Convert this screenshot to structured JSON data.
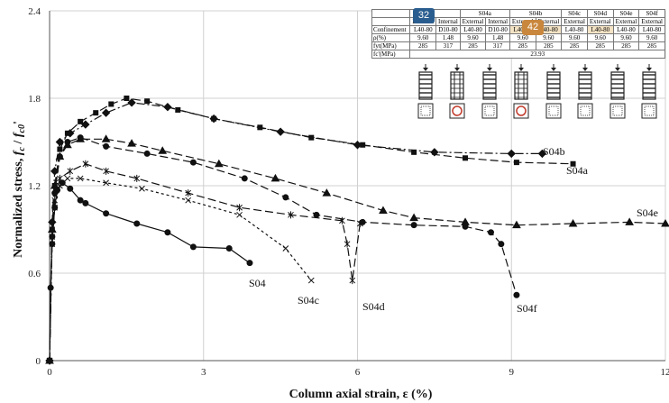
{
  "chart_data": {
    "type": "line",
    "xlabel": "Column axial strain, ε (%)",
    "ylabel": "Normalized stress, fc / fc0'",
    "xlim": [
      0,
      12
    ],
    "ylim": [
      0,
      2.4
    ],
    "x_ticks": [
      "0",
      "3",
      "6",
      "9",
      "12"
    ],
    "y_ticks": [
      "0",
      "0.6",
      "1.2",
      "1.8",
      "2.4"
    ],
    "grid": true,
    "series": [
      {
        "name": "S04",
        "marker": "circle",
        "dash": "solid",
        "x": [
          0,
          0.02,
          0.05,
          0.1,
          0.15,
          0.25,
          0.4,
          0.6,
          0.7,
          1.1,
          1.7,
          2.3,
          2.8,
          3.5,
          3.9
        ],
        "y": [
          0,
          0.5,
          0.8,
          1.05,
          1.17,
          1.22,
          1.18,
          1.1,
          1.08,
          1.01,
          0.94,
          0.88,
          0.78,
          0.77,
          0.67
        ]
      },
      {
        "name": "S04a",
        "marker": "square",
        "dash": "long-dash",
        "x": [
          0,
          0.05,
          0.1,
          0.2,
          0.35,
          0.6,
          0.9,
          1.2,
          1.5,
          1.9,
          2.5,
          3.2,
          4.1,
          5.1,
          6.1,
          7.1,
          8.1,
          9.1,
          10.2
        ],
        "y": [
          0,
          0.9,
          1.2,
          1.45,
          1.56,
          1.64,
          1.7,
          1.76,
          1.8,
          1.78,
          1.72,
          1.66,
          1.6,
          1.53,
          1.48,
          1.43,
          1.39,
          1.36,
          1.35
        ]
      },
      {
        "name": "S04b",
        "marker": "diamond",
        "dash": "dash-dot",
        "x": [
          0,
          0.05,
          0.1,
          0.2,
          0.4,
          0.7,
          1.1,
          1.6,
          2.3,
          3.2,
          4.5,
          6.0,
          7.5,
          9.0,
          9.6
        ],
        "y": [
          0,
          0.95,
          1.3,
          1.5,
          1.56,
          1.62,
          1.7,
          1.77,
          1.74,
          1.66,
          1.57,
          1.48,
          1.43,
          1.42,
          1.42
        ]
      },
      {
        "name": "S04c",
        "marker": "x",
        "dash": "short-dash",
        "x": [
          0,
          0.05,
          0.1,
          0.2,
          0.35,
          0.6,
          1.1,
          1.8,
          2.7,
          3.7,
          4.6,
          5.1
        ],
        "y": [
          0,
          0.8,
          1.05,
          1.2,
          1.25,
          1.25,
          1.22,
          1.18,
          1.1,
          1.0,
          0.77,
          0.55
        ]
      },
      {
        "name": "S04d",
        "marker": "asterisk",
        "dash": "long-dash",
        "x": [
          0,
          0.05,
          0.1,
          0.2,
          0.4,
          0.7,
          1.1,
          1.7,
          2.7,
          3.7,
          4.7,
          5.7,
          5.8,
          5.9,
          6.05
        ],
        "y": [
          0,
          0.85,
          1.1,
          1.25,
          1.3,
          1.35,
          1.3,
          1.25,
          1.15,
          1.05,
          1.0,
          0.96,
          0.8,
          0.55,
          0.94
        ]
      },
      {
        "name": "S04e",
        "marker": "triangle",
        "dash": "long-dash",
        "x": [
          0,
          0.05,
          0.1,
          0.2,
          0.35,
          0.6,
          1.1,
          1.6,
          2.2,
          3.3,
          4.4,
          5.4,
          6.5,
          7.1,
          8.1,
          9.1,
          10.2,
          11.3,
          12.0
        ],
        "y": [
          0,
          0.9,
          1.2,
          1.4,
          1.48,
          1.52,
          1.52,
          1.49,
          1.44,
          1.35,
          1.25,
          1.15,
          1.03,
          0.98,
          0.95,
          0.93,
          0.94,
          0.95,
          0.94
        ]
      },
      {
        "name": "S04f",
        "marker": "circle",
        "dash": "long-dash",
        "x": [
          0,
          0.05,
          0.1,
          0.2,
          0.35,
          0.6,
          1.1,
          1.9,
          2.8,
          3.8,
          4.6,
          5.2,
          6.1,
          7.1,
          8.1,
          8.6,
          8.8,
          9.1
        ],
        "y": [
          0,
          0.85,
          1.15,
          1.4,
          1.5,
          1.53,
          1.47,
          1.42,
          1.36,
          1.25,
          1.12,
          1.0,
          0.95,
          0.93,
          0.92,
          0.88,
          0.8,
          0.45
        ]
      }
    ],
    "annotations": {
      "S04": "S04",
      "S04a": "S04a",
      "S04b": "S04b",
      "S04c": "S04c",
      "S04d": "S04d",
      "S04e": "S04e",
      "S04f": "S04f"
    }
  },
  "inset_table": {
    "header": [
      "",
      "S04a",
      "S04b",
      "S04c",
      "S04d",
      "S04e",
      "S04f"
    ],
    "confinement_type": [
      "External",
      "Internal",
      "External",
      "Internal",
      "External",
      "External",
      "External",
      "External",
      "External",
      "External"
    ],
    "rows": [
      {
        "label": "Confinement",
        "cells": [
          "L40-80",
          "D10-80",
          "L40-80",
          "D10-80",
          "L40-80",
          "L40-80",
          "L40-80",
          "L40-80",
          "L40-80",
          "L40-80"
        ]
      },
      {
        "label": "ρ(%)",
        "cells": [
          "9.60",
          "1.48",
          "9.60",
          "1.48",
          "9.60",
          "9.60",
          "9.60",
          "9.60",
          "9.60",
          "9.60"
        ]
      },
      {
        "label": "fyt(MPa)",
        "cells": [
          "285",
          "317",
          "285",
          "317",
          "285",
          "285",
          "285",
          "285",
          "285",
          "285"
        ]
      },
      {
        "label": "fc'(MPa)",
        "value": "23.93"
      }
    ],
    "badges": [
      "32",
      "42"
    ]
  },
  "colors": {
    "badge_blue": "#2a5d8f",
    "badge_orange": "#c9873d",
    "highlight": "#f4e3c4"
  }
}
